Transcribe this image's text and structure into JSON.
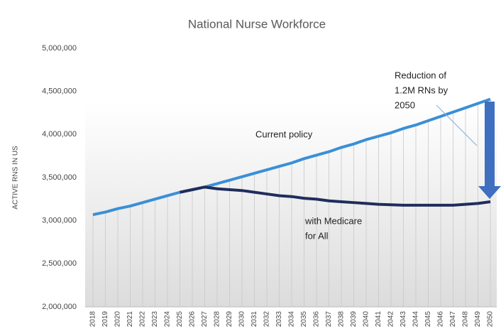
{
  "chart_data": {
    "type": "line",
    "title": "National  Nurse Workforce",
    "y_label": "ACTIVE RNS IN US",
    "categories": [
      "2018",
      "2019",
      "2020",
      "2021",
      "2022",
      "2023",
      "2024",
      "2025",
      "2026",
      "2027",
      "2028",
      "2029",
      "2030",
      "2031",
      "2032",
      "2033",
      "2034",
      "2035",
      "2036",
      "2037",
      "2038",
      "2039",
      "2040",
      "2041",
      "2042",
      "2043",
      "2044",
      "2045",
      "2046",
      "2047",
      "2048",
      "2049",
      "2050"
    ],
    "series": [
      {
        "name": "Current policy",
        "color": "#3a8fd6",
        "values": [
          3070000,
          3100000,
          3140000,
          3170000,
          3210000,
          3250000,
          3290000,
          3330000,
          3360000,
          3390000,
          3430000,
          3470000,
          3510000,
          3550000,
          3590000,
          3630000,
          3670000,
          3720000,
          3760000,
          3800000,
          3850000,
          3890000,
          3940000,
          3980000,
          4020000,
          4070000,
          4110000,
          4160000,
          4210000,
          4260000,
          4310000,
          4360000,
          4410000
        ]
      },
      {
        "name": "with Medicare for All",
        "color": "#1f2d5c",
        "values": [
          null,
          null,
          null,
          null,
          null,
          null,
          null,
          3330000,
          3360000,
          3390000,
          3370000,
          3360000,
          3350000,
          3330000,
          3310000,
          3290000,
          3280000,
          3260000,
          3250000,
          3230000,
          3220000,
          3210000,
          3200000,
          3190000,
          3185000,
          3180000,
          3180000,
          3180000,
          3180000,
          3180000,
          3190000,
          3200000,
          3220000
        ]
      }
    ],
    "annotations": [
      {
        "lines": [
          "Current policy"
        ]
      },
      {
        "lines": [
          "with Medicare",
          "for All"
        ]
      },
      {
        "lines": [
          "Reduction of",
          "1.2M RNs by",
          "2050"
        ]
      }
    ],
    "ylim": [
      2000000,
      5000000
    ],
    "yticks": [
      {
        "value": 2000000,
        "label": "2,000,000"
      },
      {
        "value": 2500000,
        "label": "2,500,000"
      },
      {
        "value": 3000000,
        "label": "3,000,000"
      },
      {
        "value": 3500000,
        "label": "3,500,000"
      },
      {
        "value": 4000000,
        "label": "4,000,000"
      },
      {
        "value": 4500000,
        "label": "4,500,000"
      },
      {
        "value": 5000000,
        "label": "5,000,000"
      }
    ],
    "grid": false
  }
}
